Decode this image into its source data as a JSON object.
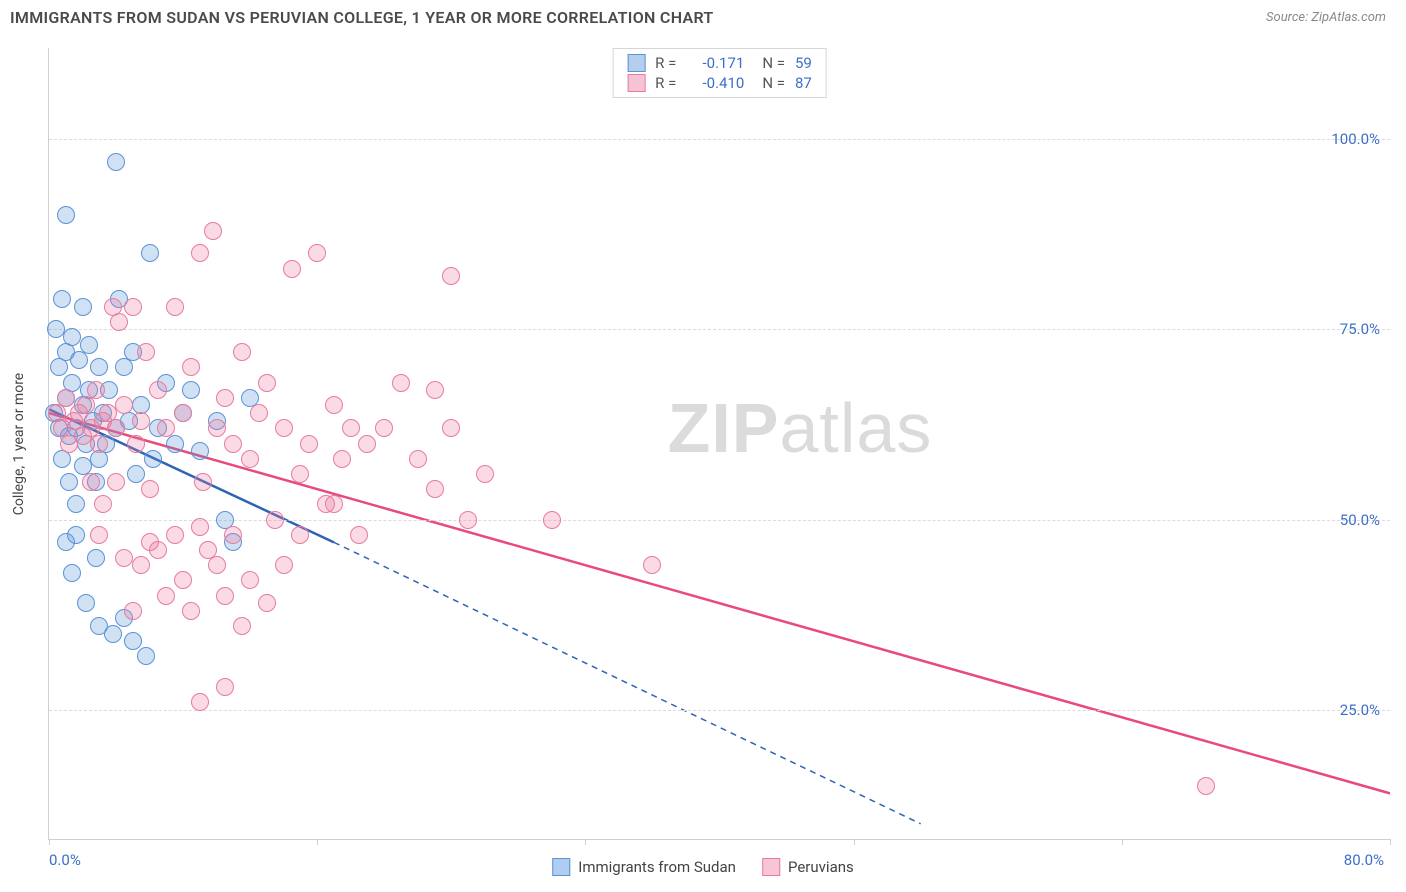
{
  "header": {
    "title": "IMMIGRANTS FROM SUDAN VS PERUVIAN COLLEGE, 1 YEAR OR MORE CORRELATION CHART",
    "source": "Source: ZipAtlas.com"
  },
  "chart": {
    "type": "scatter",
    "ylabel": "College, 1 year or more",
    "background_color": "#ffffff",
    "grid_color": "#dcdcdc",
    "axis_color": "#cfcfcf",
    "tick_color": "#3b6fc9",
    "tick_fontsize": 15,
    "label_fontsize": 14,
    "xlim": [
      0,
      80
    ],
    "ylim": [
      8,
      112
    ],
    "xtick_positions": [
      0,
      16,
      32,
      48,
      64,
      80
    ],
    "xtick_origin": "0.0%",
    "xtick_max": "80.0%",
    "ytick_positions": [
      25,
      50,
      75,
      100
    ],
    "ytick_labels": [
      "25.0%",
      "50.0%",
      "75.0%",
      "100.0%"
    ],
    "marker_radius": 9,
    "marker_stroke_width": 1.5,
    "marker_fill_opacity": 0.28,
    "watermark_text_bold": "ZIP",
    "watermark_text_rest": "atlas",
    "series": [
      {
        "name": "Immigrants from Sudan",
        "stroke": "#5a93d6",
        "fill": "#5a93d6",
        "line_color": "#2e64b5",
        "line_width": 2.5,
        "r_value": "-0.171",
        "n_value": "59",
        "trend_solid": {
          "x1": 0,
          "y1": 64.5,
          "x2": 17,
          "y2": 47
        },
        "trend_dash": {
          "x1": 17,
          "y1": 47,
          "x2": 52,
          "y2": 10
        },
        "points": [
          [
            0.3,
            64
          ],
          [
            0.4,
            75
          ],
          [
            0.6,
            70
          ],
          [
            0.6,
            62
          ],
          [
            0.8,
            58
          ],
          [
            0.8,
            79
          ],
          [
            1.0,
            72
          ],
          [
            1.0,
            66
          ],
          [
            1.0,
            90
          ],
          [
            1.2,
            61
          ],
          [
            1.2,
            55
          ],
          [
            1.4,
            68
          ],
          [
            1.4,
            74
          ],
          [
            1.6,
            62
          ],
          [
            1.6,
            52
          ],
          [
            1.8,
            71
          ],
          [
            2.0,
            65
          ],
          [
            2.0,
            57
          ],
          [
            2.0,
            78
          ],
          [
            2.2,
            60
          ],
          [
            2.4,
            67
          ],
          [
            2.4,
            73
          ],
          [
            2.6,
            63
          ],
          [
            2.8,
            55
          ],
          [
            3.0,
            70
          ],
          [
            3.0,
            58
          ],
          [
            3.2,
            64
          ],
          [
            3.4,
            60
          ],
          [
            3.6,
            67
          ],
          [
            4.0,
            62
          ],
          [
            4.0,
            97
          ],
          [
            4.2,
            79
          ],
          [
            4.5,
            70
          ],
          [
            4.8,
            63
          ],
          [
            5.0,
            72
          ],
          [
            5.2,
            56
          ],
          [
            5.5,
            65
          ],
          [
            6.0,
            85
          ],
          [
            6.2,
            58
          ],
          [
            6.5,
            62
          ],
          [
            7.0,
            68
          ],
          [
            7.5,
            60
          ],
          [
            8.0,
            64
          ],
          [
            8.5,
            67
          ],
          [
            9.0,
            59
          ],
          [
            10.0,
            63
          ],
          [
            10.5,
            50
          ],
          [
            11.0,
            47
          ],
          [
            12.0,
            66
          ],
          [
            1.6,
            48
          ],
          [
            2.2,
            39
          ],
          [
            3.0,
            36
          ],
          [
            3.8,
            35
          ],
          [
            4.5,
            37
          ],
          [
            1.0,
            47
          ],
          [
            1.4,
            43
          ],
          [
            5.0,
            34
          ],
          [
            5.8,
            32
          ],
          [
            2.8,
            45
          ]
        ]
      },
      {
        "name": "Peruvians",
        "stroke": "#e97ba0",
        "fill": "#e97ba0",
        "line_color": "#e84a7a",
        "line_width": 2.5,
        "r_value": "-0.410",
        "n_value": "87",
        "trend_solid": {
          "x1": 0,
          "y1": 64,
          "x2": 80,
          "y2": 14
        },
        "trend_dash": null,
        "points": [
          [
            0.5,
            64
          ],
          [
            0.8,
            62
          ],
          [
            1.0,
            66
          ],
          [
            1.2,
            60
          ],
          [
            1.5,
            63
          ],
          [
            1.8,
            64
          ],
          [
            2.0,
            61
          ],
          [
            2.2,
            65
          ],
          [
            2.5,
            62
          ],
          [
            2.8,
            67
          ],
          [
            3.0,
            60
          ],
          [
            3.2,
            63
          ],
          [
            3.5,
            64
          ],
          [
            3.8,
            78
          ],
          [
            4.0,
            62
          ],
          [
            4.2,
            76
          ],
          [
            4.5,
            65
          ],
          [
            5.0,
            78
          ],
          [
            5.2,
            60
          ],
          [
            5.5,
            63
          ],
          [
            5.8,
            72
          ],
          [
            6.0,
            54
          ],
          [
            6.5,
            67
          ],
          [
            7.0,
            62
          ],
          [
            7.5,
            78
          ],
          [
            8.0,
            64
          ],
          [
            8.5,
            70
          ],
          [
            9.0,
            85
          ],
          [
            9.2,
            55
          ],
          [
            9.8,
            88
          ],
          [
            10.0,
            62
          ],
          [
            10.5,
            66
          ],
          [
            11.0,
            60
          ],
          [
            11.5,
            72
          ],
          [
            12.0,
            58
          ],
          [
            12.5,
            64
          ],
          [
            13.0,
            68
          ],
          [
            13.5,
            50
          ],
          [
            14.0,
            62
          ],
          [
            14.5,
            83
          ],
          [
            15.0,
            56
          ],
          [
            15.5,
            60
          ],
          [
            16.0,
            85
          ],
          [
            16.5,
            52
          ],
          [
            17.0,
            65
          ],
          [
            17.5,
            58
          ],
          [
            18.0,
            62
          ],
          [
            18.5,
            48
          ],
          [
            19.0,
            60
          ],
          [
            20.0,
            62
          ],
          [
            21.0,
            68
          ],
          [
            22.0,
            58
          ],
          [
            23.0,
            54
          ],
          [
            24.0,
            62
          ],
          [
            25.0,
            50
          ],
          [
            26.0,
            56
          ],
          [
            23.0,
            67
          ],
          [
            3.0,
            48
          ],
          [
            4.5,
            45
          ],
          [
            5.0,
            38
          ],
          [
            5.5,
            44
          ],
          [
            6.0,
            47
          ],
          [
            6.5,
            46
          ],
          [
            7.0,
            40
          ],
          [
            7.5,
            48
          ],
          [
            8.0,
            42
          ],
          [
            8.5,
            38
          ],
          [
            9.0,
            49
          ],
          [
            9.5,
            46
          ],
          [
            10.0,
            44
          ],
          [
            10.5,
            40
          ],
          [
            11.0,
            48
          ],
          [
            11.5,
            36
          ],
          [
            12.0,
            42
          ],
          [
            13.0,
            39
          ],
          [
            14.0,
            44
          ],
          [
            9.0,
            26
          ],
          [
            10.5,
            28
          ],
          [
            2.5,
            55
          ],
          [
            3.2,
            52
          ],
          [
            4.0,
            55
          ],
          [
            30.0,
            50
          ],
          [
            36.0,
            44
          ],
          [
            24.0,
            82
          ],
          [
            69.0,
            15
          ],
          [
            15.0,
            48
          ],
          [
            17.0,
            52
          ]
        ]
      }
    ],
    "legend_bottom": [
      {
        "label": "Immigrants from Sudan",
        "stroke": "#5a93d6",
        "fill": "#aecdf0"
      },
      {
        "label": "Peruvians",
        "stroke": "#e97ba0",
        "fill": "#f6c6d8"
      }
    ]
  }
}
